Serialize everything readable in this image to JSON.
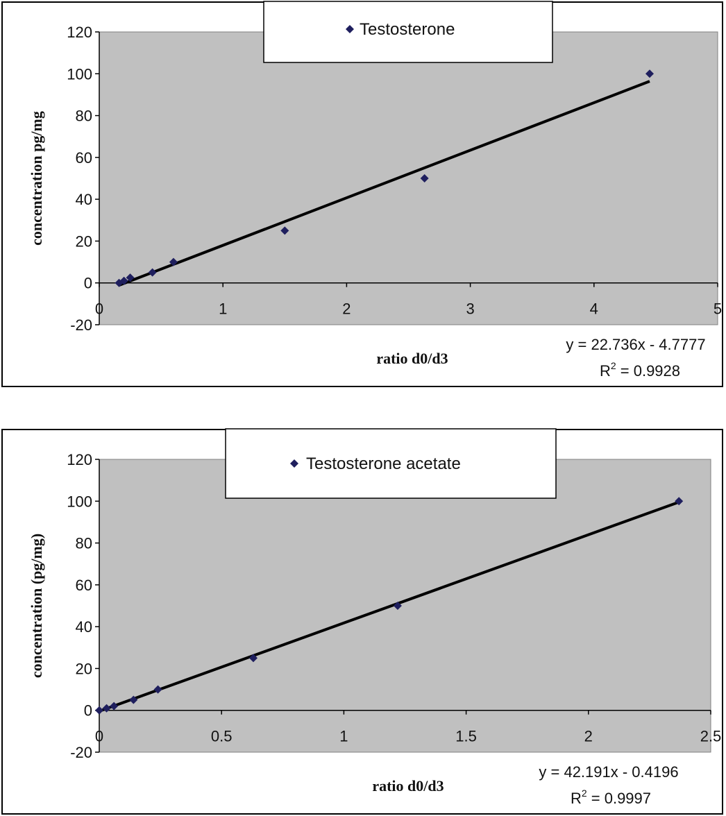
{
  "chart_data": [
    {
      "type": "scatter",
      "legend": {
        "position": "top-center",
        "entries": [
          "Testosterone"
        ]
      },
      "series": [
        {
          "name": "Testosterone",
          "color": "#1f1f5e",
          "marker": "diamond",
          "x": [
            0.16,
            0.2,
            0.25,
            0.43,
            0.6,
            1.5,
            2.63,
            4.45
          ],
          "y": [
            0,
            1,
            2.5,
            5,
            10,
            25,
            50,
            100
          ]
        }
      ],
      "trendline": {
        "type": "linear",
        "slope": 22.736,
        "intercept": -4.7777,
        "x_range": [
          0.16,
          4.45
        ]
      },
      "equation_label": "y = 22.736x - 4.7777",
      "r2_label": "R",
      "r2_sup": "2",
      "r2_value": " = 0.9928",
      "xlabel": "ratio d0/d3",
      "ylabel": "concentration  pg/mg",
      "xlim": [
        0,
        5
      ],
      "ylim": [
        -20,
        120
      ],
      "xticks": [
        "0",
        "1",
        "2",
        "3",
        "4",
        "5"
      ],
      "yticks": [
        "-20",
        "0",
        "20",
        "40",
        "60",
        "80",
        "100",
        "120"
      ],
      "plot_background": "#c0c0c0",
      "grid": false
    },
    {
      "type": "scatter",
      "legend": {
        "position": "top-center",
        "entries": [
          "Testosterone acetate"
        ]
      },
      "series": [
        {
          "name": "Testosterone acetate",
          "color": "#1f1f5e",
          "marker": "diamond",
          "x": [
            0,
            0.03,
            0.06,
            0.14,
            0.24,
            0.63,
            1.22,
            2.37
          ],
          "y": [
            0,
            1,
            2,
            5,
            10,
            25,
            50,
            100
          ]
        }
      ],
      "trendline": {
        "type": "linear",
        "slope": 42.191,
        "intercept": -0.4196,
        "x_range": [
          0,
          2.37
        ]
      },
      "equation_label": "y = 42.191x - 0.4196",
      "r2_label": "R",
      "r2_sup": "2",
      "r2_value": " = 0.9997",
      "xlabel": "ratio d0/d3",
      "ylabel": "concentration (pg/mg)",
      "xlim": [
        0,
        2.5
      ],
      "ylim": [
        -20,
        120
      ],
      "xticks": [
        "0",
        "0.5",
        "1",
        "1.5",
        "2",
        "2.5"
      ],
      "yticks": [
        "-20",
        "0",
        "20",
        "40",
        "60",
        "80",
        "100",
        "120"
      ],
      "plot_background": "#c0c0c0",
      "grid": false
    }
  ]
}
